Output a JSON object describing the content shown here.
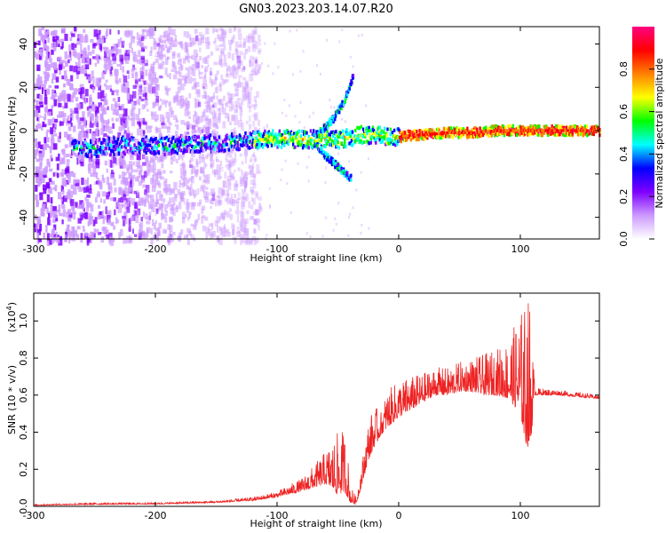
{
  "title": "GN03.2023.203.14.07.R20",
  "chart_data": [
    {
      "type": "heatmap",
      "xlabel": "Height of straight line (km)",
      "ylabel": "Frequency (Hz)",
      "xlim": [
        -300,
        165
      ],
      "ylim": [
        -50,
        48
      ],
      "xticks": [
        -300,
        -200,
        -100,
        0,
        100
      ],
      "xtick_labels": [
        "-300",
        "-200",
        "-100",
        "0",
        "100"
      ],
      "yticks": [
        -40,
        -20,
        0,
        20,
        40
      ],
      "ytick_labels": [
        "-40",
        "-20",
        "0",
        "20",
        "40"
      ],
      "colorbar": {
        "label": "Normalized spectral amplitude",
        "range": [
          0.0,
          1.0
        ],
        "ticks": [
          0.0,
          0.2,
          0.4,
          0.6,
          0.8
        ],
        "tick_labels": [
          "0.0",
          "0.2",
          "0.4",
          "0.6",
          "0.8"
        ],
        "colormap": [
          "#ffffff",
          "#cc99ff",
          "#7f00ff",
          "#0000ff",
          "#00ffff",
          "#00ff00",
          "#ffff00",
          "#ff8000",
          "#ff0000",
          "#ff0080"
        ]
      },
      "ridge": {
        "x": [
          -270,
          -250,
          -230,
          -210,
          -190,
          -170,
          -150,
          -130,
          -110,
          -90,
          -70,
          -50,
          -40,
          -30,
          -20,
          -10,
          0,
          10,
          20,
          40,
          60,
          80,
          100,
          120,
          140,
          165
        ],
        "freq": [
          -8,
          -8,
          -7,
          -7,
          -7,
          -6,
          -6,
          -5,
          -4,
          -4,
          -4,
          -4,
          -3,
          -2,
          -2,
          -3,
          -3,
          -2,
          -2,
          -1,
          -1,
          0,
          0,
          0,
          0,
          0
        ]
      },
      "branches": [
        {
          "x": [
            -70,
            -55,
            -45,
            -38
          ],
          "freq": [
            -3,
            5,
            14,
            26
          ]
        },
        {
          "x": [
            -70,
            -60,
            -50,
            -40
          ],
          "freq": [
            -6,
            -12,
            -17,
            -22
          ]
        }
      ]
    },
    {
      "type": "line",
      "xlabel": "Height of straight line (km)",
      "ylabel": "SNR (10 * v/v)",
      "y_multiplier_label": "(x10",
      "y_multiplier_exp": "4",
      "y_multiplier_close": ")",
      "xlim": [
        -300,
        165
      ],
      "ylim": [
        0.0,
        1.15
      ],
      "xticks": [
        -300,
        -200,
        -100,
        0,
        100
      ],
      "xtick_labels": [
        "-300",
        "-200",
        "-100",
        "0",
        "100"
      ],
      "yticks": [
        0.0,
        0.2,
        0.4,
        0.6,
        0.8,
        1.0
      ],
      "ytick_labels": [
        "0.0",
        "0.2",
        "0.4",
        "0.6",
        "0.8",
        "1.0"
      ],
      "color": "#ee2222",
      "envelope": {
        "x": [
          -300,
          -250,
          -200,
          -150,
          -120,
          -100,
          -80,
          -70,
          -60,
          -55,
          -50,
          -45,
          -42,
          -40,
          -35,
          -30,
          -25,
          -20,
          -15,
          -10,
          0,
          10,
          20,
          30,
          40,
          50,
          60,
          70,
          80,
          90,
          100,
          104,
          108,
          112,
          130,
          165
        ],
        "base": [
          0.005,
          0.01,
          0.012,
          0.02,
          0.03,
          0.05,
          0.08,
          0.1,
          0.12,
          0.1,
          0.06,
          0.08,
          0.05,
          0.02,
          0.01,
          0.12,
          0.25,
          0.32,
          0.38,
          0.42,
          0.48,
          0.52,
          0.56,
          0.6,
          0.6,
          0.62,
          0.62,
          0.6,
          0.6,
          0.58,
          0.5,
          0.35,
          0.3,
          0.6,
          0.6,
          0.58
        ],
        "peak": [
          0.01,
          0.02,
          0.02,
          0.03,
          0.05,
          0.08,
          0.15,
          0.22,
          0.3,
          0.35,
          0.4,
          0.42,
          0.3,
          0.12,
          0.05,
          0.25,
          0.45,
          0.55,
          0.5,
          0.62,
          0.68,
          0.7,
          0.72,
          0.75,
          0.75,
          0.78,
          0.8,
          0.82,
          0.85,
          0.9,
          1.05,
          1.1,
          1.15,
          0.64,
          0.63,
          0.6
        ]
      }
    }
  ]
}
